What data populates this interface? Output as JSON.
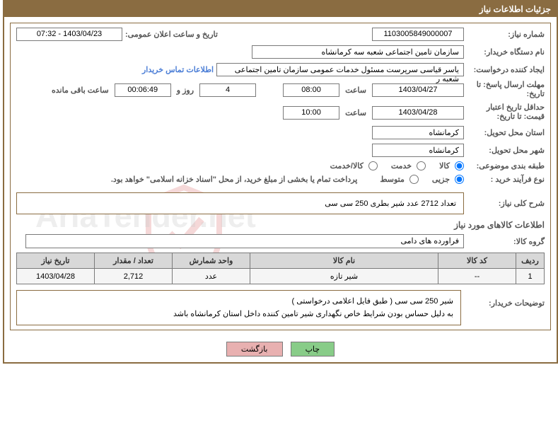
{
  "header": {
    "title": "جزئیات اطلاعات نیاز"
  },
  "fields": {
    "need_number_label": "شماره نیاز:",
    "need_number": "1103005849000007",
    "announce_datetime_label": "تاریخ و ساعت اعلان عمومی:",
    "announce_datetime": "1403/04/23 - 07:32",
    "buyer_name_label": "نام دستگاه خریدار:",
    "buyer_name": "سازمان تامین اجتماعی شعبه سه کرمانشاه",
    "requester_label": "ایجاد کننده درخواست:",
    "requester": "یاسر قیاسی سرپرست مسئول خدمات عمومی سازمان تامین اجتماعی شعبه ر",
    "requester_link": "اطلاعات تماس خریدار",
    "deadline_label": "مهلت ارسال پاسخ:  تا تاریخ:",
    "deadline_date": "1403/04/27",
    "time_label": "ساعت",
    "deadline_time": "08:00",
    "days_remaining": "4",
    "days_label": "روز و",
    "time_remaining": "00:06:49",
    "remaining_label": "ساعت باقی مانده",
    "validity_label": "حداقل تاریخ اعتبار قیمت:  تا تاریخ:",
    "validity_date": "1403/04/28",
    "validity_time": "10:00",
    "province_label": "استان محل تحویل:",
    "province": "کرمانشاه",
    "city_label": "شهر محل تحویل:",
    "city": "کرمانشاه",
    "category_label": "طبقه بندی موضوعی:",
    "cat_goods": "کالا",
    "cat_service": "خدمت",
    "cat_both": "کالا/خدمت",
    "process_label": "نوع فرآیند خرید :",
    "proc_partial": "جزیی",
    "proc_medium": "متوسط",
    "process_note": "پرداخت تمام یا بخشی از مبلغ خرید، از محل \"اسناد خزانه اسلامی\" خواهد بود.",
    "summary_label": "شرح کلی نیاز:",
    "summary": "تعداد 2712 عدد شیر بطری  250 سی سی",
    "goods_info_title": "اطلاعات کالاهای مورد نیاز",
    "group_label": "گروه کالا:",
    "group": "فراورده های دامی",
    "desc_label": "توضیحات خریدار:",
    "desc_line1": "شیر 250 سی سی ( طبق فایل اعلامی درخواستی )",
    "desc_line2": "به دلیل حساس بودن شرایط خاص نگهداری شیر تامین کننده داخل استان کرمانشاه باشد"
  },
  "table": {
    "headers": {
      "rownum": "ردیف",
      "code": "کد کالا",
      "name": "نام کالا",
      "unit": "واحد شمارش",
      "qty": "تعداد / مقدار",
      "date": "تاریخ نیاز"
    },
    "rows": [
      {
        "rownum": "1",
        "code": "--",
        "name": "شیر تازه",
        "unit": "عدد",
        "qty": "2,712",
        "date": "1403/04/28"
      }
    ]
  },
  "buttons": {
    "print": "چاپ",
    "return": "بازگشت"
  },
  "watermark": "AriaTender.net"
}
